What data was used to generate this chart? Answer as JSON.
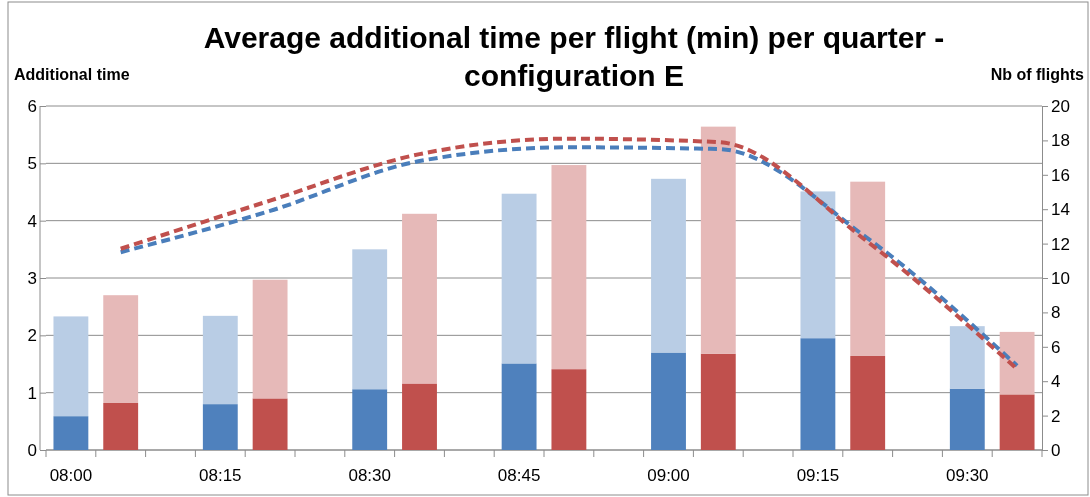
{
  "chart_data": {
    "type": "bar",
    "title": "Average additional time per flight (min) per quarter - configuration E",
    "ylabel": "Additional time",
    "y2label": "Nb of flights",
    "categories": [
      "08:00",
      null,
      null,
      "08:15",
      null,
      null,
      "08:30",
      null,
      null,
      "08:45",
      null,
      null,
      "09:00",
      null,
      null,
      "09:15",
      null,
      null,
      "09:30",
      null
    ],
    "stacked": true,
    "series": [
      {
        "color": "#4f81bd",
        "values": [
          0.59,
          null,
          null,
          0.8,
          null,
          null,
          1.06,
          null,
          null,
          1.51,
          null,
          null,
          1.7,
          null,
          null,
          1.95,
          null,
          null,
          1.07,
          null
        ]
      },
      {
        "color": "#b9cde5",
        "values": [
          1.74,
          null,
          null,
          1.54,
          null,
          null,
          2.44,
          null,
          null,
          2.96,
          null,
          null,
          3.03,
          null,
          null,
          2.56,
          null,
          null,
          1.09,
          null
        ]
      },
      {
        "color": "#c0504d",
        "values": [
          null,
          0.82,
          null,
          null,
          0.9,
          null,
          null,
          1.16,
          null,
          null,
          1.41,
          null,
          null,
          1.68,
          null,
          null,
          1.64,
          null,
          null,
          0.97
        ]
      },
      {
        "color": "#e6b9b8",
        "values": [
          null,
          1.88,
          null,
          null,
          2.07,
          null,
          null,
          2.96,
          null,
          null,
          3.56,
          null,
          null,
          3.96,
          null,
          null,
          3.04,
          null,
          null,
          1.09
        ]
      },
      {
        "type": "line",
        "axis": "y2",
        "color": "#4a7ebb",
        "line_style": "dashed",
        "values": [
          null,
          11.5,
          null,
          null,
          13.9,
          null,
          null,
          16.8,
          null,
          null,
          17.6,
          null,
          null,
          17.5,
          null,
          null,
          12.3,
          null,
          null,
          4.9
        ]
      },
      {
        "type": "line",
        "axis": "y2",
        "color": "#c0504d",
        "line_style": "dashed",
        "values": [
          null,
          11.7,
          null,
          null,
          14.5,
          null,
          null,
          17.2,
          null,
          null,
          18.1,
          null,
          null,
          17.9,
          null,
          null,
          12.1,
          null,
          null,
          4.7
        ]
      }
    ],
    "ylim": [
      0,
      6
    ],
    "yticks": [
      0,
      1,
      2,
      3,
      4,
      5,
      6
    ],
    "y2lim": [
      0,
      20
    ],
    "y2ticks": [
      0,
      2,
      4,
      6,
      8,
      10,
      12,
      14,
      16,
      18,
      20
    ],
    "grid": "y",
    "marker": "none"
  }
}
